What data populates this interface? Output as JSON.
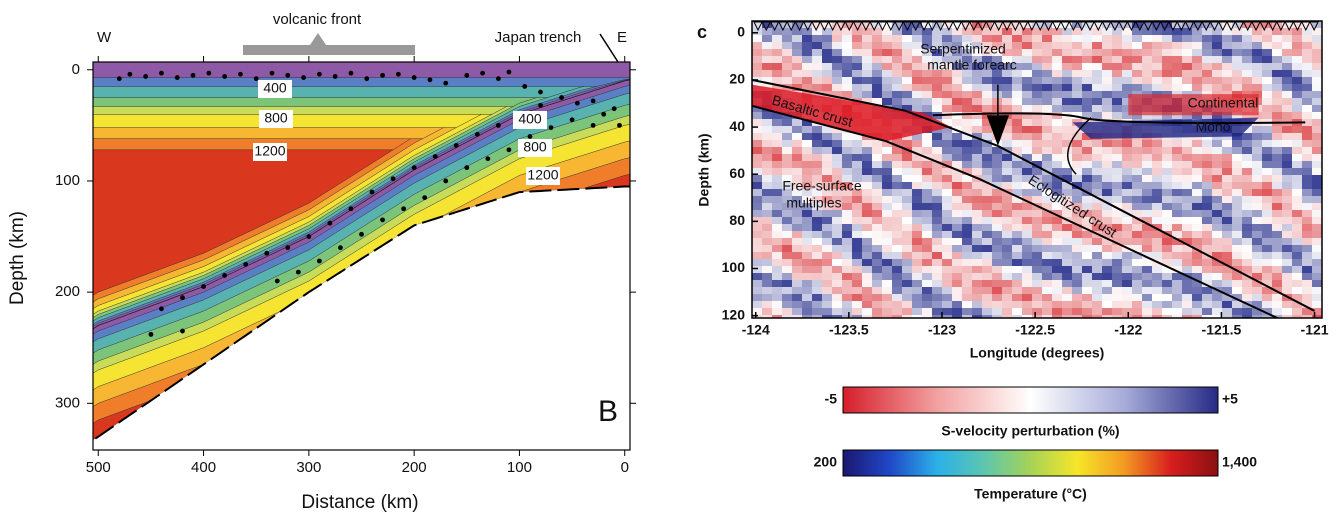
{
  "chart_data": [
    {
      "type": "scatter",
      "panel_label": "B",
      "xlabel": "Distance (km)",
      "ylabel": "Depth (km)",
      "xlim": [
        505,
        -5
      ],
      "ylim": [
        342,
        -7
      ],
      "xticks": [
        500,
        400,
        300,
        200,
        100,
        0
      ],
      "yticks": [
        0,
        100,
        200,
        300
      ],
      "annotations": [
        "W",
        "volcanic front",
        "Japan trench",
        "E",
        "400",
        "800",
        "1200",
        "400",
        "800",
        "1200"
      ],
      "series": [
        {
          "name": "earthquakes",
          "color": "#000000",
          "x": [
            480,
            470,
            455,
            440,
            425,
            410,
            395,
            380,
            365,
            350,
            335,
            320,
            305,
            290,
            275,
            260,
            245,
            230,
            215,
            200,
            185,
            170,
            150,
            135,
            120,
            110,
            95,
            80,
            60,
            45,
            30,
            20,
            10,
            5,
            440,
            420,
            400,
            380,
            360,
            340,
            320,
            300,
            280,
            260,
            240,
            220,
            200,
            180,
            160,
            140,
            120,
            100,
            80,
            330,
            310,
            290,
            270,
            250,
            230,
            210,
            190,
            170,
            150,
            130,
            110,
            90,
            70,
            50,
            30,
            450,
            420
          ],
          "values": [
            8,
            4,
            6,
            3,
            7,
            5,
            3,
            6,
            4,
            8,
            3,
            5,
            7,
            4,
            6,
            3,
            8,
            5,
            4,
            7,
            9,
            12,
            5,
            3,
            8,
            2,
            15,
            20,
            25,
            30,
            28,
            40,
            35,
            50,
            215,
            205,
            195,
            185,
            175,
            165,
            160,
            150,
            138,
            125,
            110,
            98,
            88,
            78,
            68,
            58,
            50,
            40,
            32,
            190,
            182,
            172,
            160,
            148,
            135,
            125,
            115,
            100,
            88,
            80,
            72,
            60,
            52,
            45,
            50,
            238,
            235
          ]
        }
      ]
    },
    {
      "type": "image",
      "panel_label": "c",
      "xlabel": "Longitude (degrees)",
      "ylabel": "Depth (km)",
      "xlim": [
        -124.02,
        -120.96
      ],
      "ylim": [
        121,
        -5
      ],
      "xticks": [
        -124,
        -123.5,
        -123,
        -122.5,
        -122,
        -121.5,
        -121
      ],
      "yticks": [
        0,
        20,
        40,
        60,
        80,
        100,
        120
      ],
      "annotations": [
        "Serpentinized",
        "mantle forearc",
        "Basaltic crust",
        "Continental",
        "Moho",
        "Free-surface",
        "multiples",
        "Eclogitized crust"
      ],
      "colorbars": [
        {
          "label": "S-velocity perturbation (%)",
          "lim": [
            -5,
            5
          ],
          "ticks": [
            -5,
            {
              "value": 5,
              "label": "+5"
            }
          ],
          "colors": [
            "#d61f2a",
            "#f2a0a0",
            "#ffffff",
            "#a7acd8",
            "#262a86"
          ]
        },
        {
          "label": "Temperature (°C)",
          "lim": [
            200,
            1400
          ],
          "ticks": [
            200,
            {
              "value": 1400,
              "label": "1,400"
            }
          ],
          "colors": [
            "#1b1770",
            "#2048c8",
            "#2bb0e8",
            "#5cc6b0",
            "#a6d356",
            "#f6e62a",
            "#f39a22",
            "#d81e1e",
            "#8a0f12"
          ]
        }
      ]
    }
  ]
}
